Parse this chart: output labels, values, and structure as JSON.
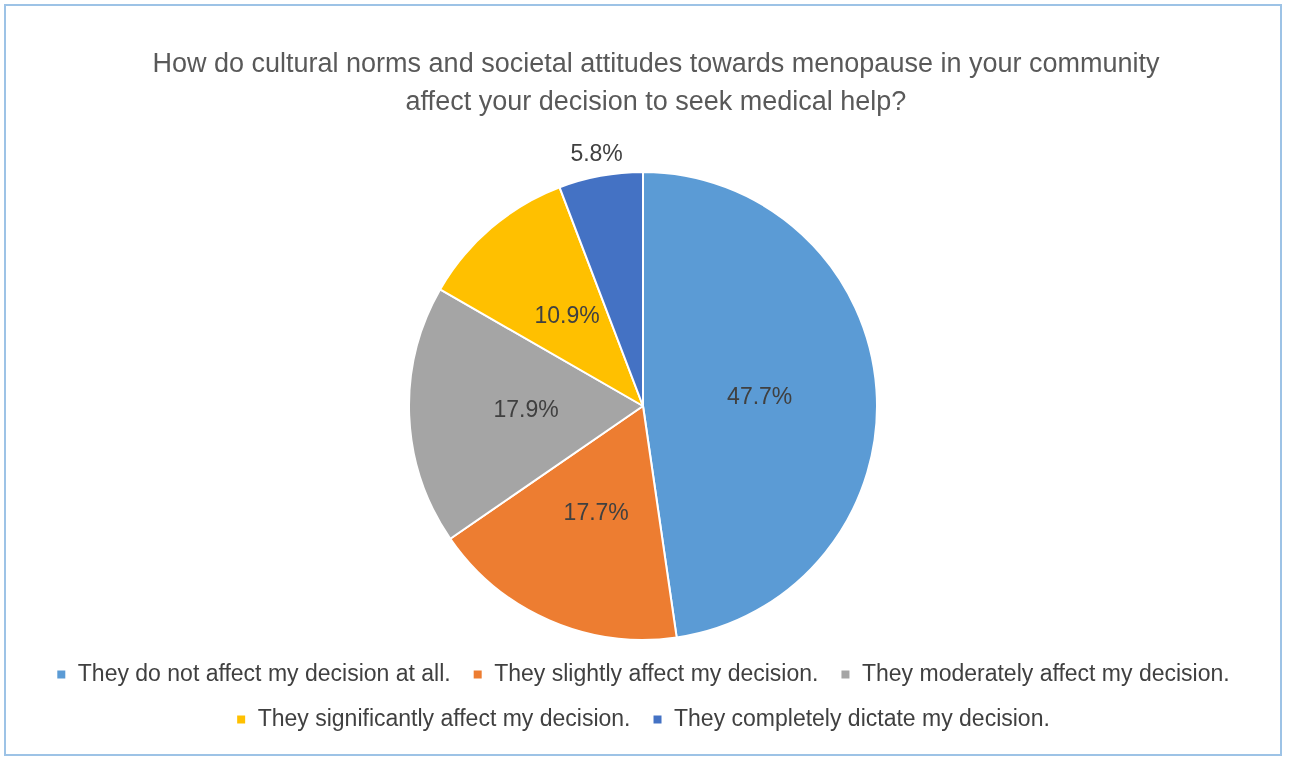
{
  "chart_data": {
    "type": "pie",
    "title": "How do cultural norms and societal attitudes towards menopause in your community affect your decision to seek medical help?",
    "categories": [
      "They do not affect my decision at all.",
      "They slightly affect my decision.",
      "They moderately affect my decision.",
      "They significantly affect my decision.",
      "They completely dictate my decision."
    ],
    "values": [
      47.7,
      17.7,
      17.9,
      10.9,
      5.8
    ],
    "colors": [
      "#5b9bd5",
      "#ed7d31",
      "#a5a5a5",
      "#ffc000",
      "#4472c4"
    ],
    "value_labels": [
      "47.7%",
      "17.7%",
      "17.9%",
      "10.9%",
      "5.8%"
    ],
    "legend": "bottom"
  }
}
